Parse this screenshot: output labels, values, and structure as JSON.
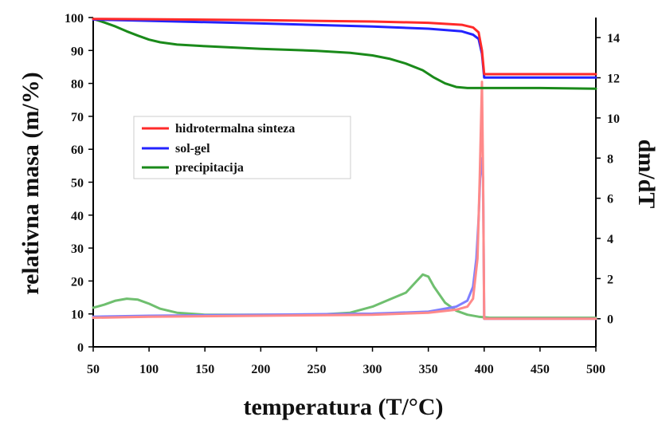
{
  "chart_data": {
    "type": "line",
    "title": "",
    "xlabel": "temperatura (T/°C)",
    "ylabel": "relativna masa (m/%)",
    "y2label": "dm/dT",
    "xlim": [
      50,
      500
    ],
    "ylim": [
      0,
      100
    ],
    "y2lim": [
      -1.4,
      15
    ],
    "xticks": [
      50,
      100,
      150,
      200,
      250,
      300,
      350,
      400,
      450,
      500
    ],
    "yticks": [
      0,
      10,
      20,
      30,
      40,
      50,
      60,
      70,
      80,
      90,
      100
    ],
    "y2ticks": [
      0,
      2,
      4,
      6,
      8,
      10,
      12,
      14
    ],
    "grid": false,
    "legend_position": "upper-left",
    "series": [
      {
        "name": "hidrotermalna sinteza",
        "color": "#ff2a2a",
        "axis": "left",
        "x": [
          50,
          100,
          200,
          300,
          350,
          380,
          390,
          395,
          398,
          400,
          410,
          450,
          500
        ],
        "y": [
          99.6,
          99.5,
          99.2,
          98.8,
          98.4,
          97.8,
          97.0,
          95.5,
          90.0,
          82.8,
          82.8,
          82.8,
          82.8
        ]
      },
      {
        "name": "sol-gel",
        "color": "#2323ff",
        "axis": "left",
        "x": [
          50,
          100,
          200,
          300,
          350,
          380,
          390,
          395,
          398,
          400,
          410,
          450,
          500
        ],
        "y": [
          99.4,
          99.0,
          98.2,
          97.3,
          96.6,
          95.8,
          94.8,
          93.5,
          89.0,
          81.8,
          81.8,
          81.8,
          81.8
        ]
      },
      {
        "name": "precipitacija",
        "color": "#1a8a1a",
        "axis": "left",
        "x": [
          50,
          60,
          70,
          80,
          90,
          100,
          110,
          125,
          150,
          200,
          250,
          280,
          300,
          315,
          330,
          345,
          355,
          365,
          375,
          385,
          400,
          450,
          500
        ],
        "y": [
          99.6,
          98.5,
          97.3,
          95.8,
          94.5,
          93.3,
          92.5,
          91.8,
          91.3,
          90.5,
          89.9,
          89.3,
          88.5,
          87.5,
          86.0,
          84.0,
          81.8,
          80.0,
          78.9,
          78.6,
          78.6,
          78.6,
          78.4
        ]
      },
      {
        "name": "",
        "color": "#ff8a8a",
        "axis": "right",
        "x": [
          50,
          100,
          200,
          300,
          350,
          375,
          385,
          390,
          394,
          396,
          398,
          399,
          400,
          402,
          450,
          500
        ],
        "y": [
          0.05,
          0.1,
          0.15,
          0.2,
          0.3,
          0.45,
          0.6,
          1.0,
          3.0,
          7.0,
          11.8,
          7.0,
          0.0,
          0.0,
          0.0,
          0.0
        ]
      },
      {
        "name": "",
        "color": "#7f7fff",
        "axis": "right",
        "x": [
          50,
          100,
          200,
          300,
          350,
          375,
          385,
          390,
          393,
          395,
          397,
          399,
          400,
          402,
          450,
          500
        ],
        "y": [
          0.1,
          0.15,
          0.2,
          0.25,
          0.35,
          0.6,
          0.9,
          1.6,
          3.0,
          5.0,
          8.0,
          7.0,
          0.0,
          0.0,
          0.0,
          0.0
        ]
      },
      {
        "name": "",
        "color": "#6fbf6f",
        "axis": "right",
        "x": [
          50,
          60,
          70,
          80,
          90,
          100,
          110,
          125,
          150,
          200,
          250,
          280,
          300,
          315,
          330,
          340,
          345,
          350,
          355,
          365,
          375,
          385,
          395,
          405,
          450,
          500
        ],
        "y": [
          0.55,
          0.7,
          0.9,
          1.0,
          0.95,
          0.75,
          0.5,
          0.3,
          0.2,
          0.2,
          0.2,
          0.3,
          0.6,
          0.95,
          1.3,
          1.9,
          2.2,
          2.1,
          1.6,
          0.8,
          0.4,
          0.2,
          0.1,
          0.05,
          0.05,
          0.05
        ]
      }
    ]
  }
}
